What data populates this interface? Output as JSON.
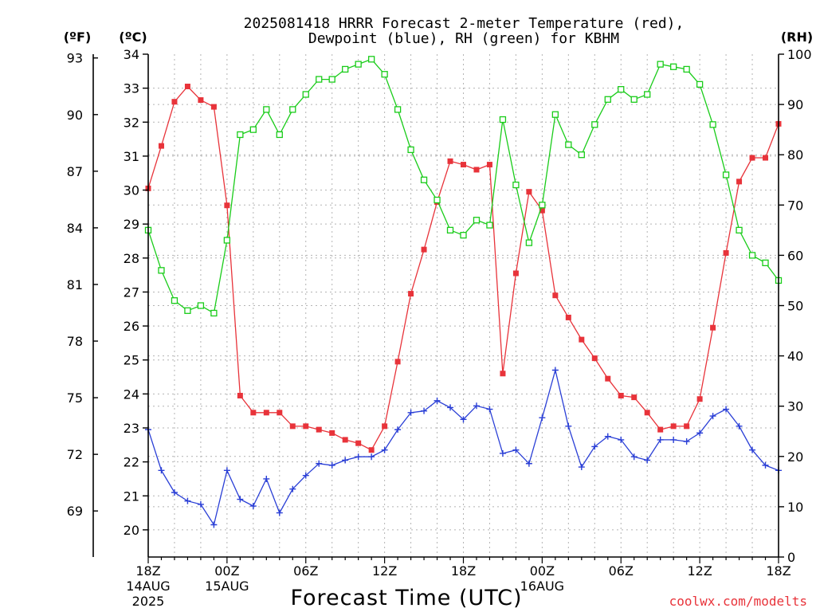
{
  "title_line1": "2025081418 HRRR Forecast 2-meter Temperature (red),",
  "title_line2": "Dewpoint (blue), RH (green) for KBHM",
  "unit_f": "(ºF)",
  "unit_c": "(ºC)",
  "unit_rh": "(RH)",
  "xlabel": "Forecast Time (UTC)",
  "credit": "coolwx.com/modelts",
  "colors": {
    "temp": "#e8333a",
    "dew": "#2a3fd6",
    "rh": "#19cc19",
    "credit": "#e8333a"
  },
  "chart_data": {
    "type": "line",
    "x_unit": "forecast hour from 2025-08-14 18Z",
    "xlim": [
      0,
      48
    ],
    "x_ticks": [
      {
        "hour": 0,
        "lines": [
          "18Z",
          "14AUG",
          "2025"
        ]
      },
      {
        "hour": 6,
        "lines": [
          "00Z",
          "15AUG"
        ]
      },
      {
        "hour": 12,
        "lines": [
          "06Z"
        ]
      },
      {
        "hour": 18,
        "lines": [
          "12Z"
        ]
      },
      {
        "hour": 24,
        "lines": [
          "18Z"
        ]
      },
      {
        "hour": 30,
        "lines": [
          "00Z",
          "16AUG"
        ]
      },
      {
        "hour": 36,
        "lines": [
          "06Z"
        ]
      },
      {
        "hour": 42,
        "lines": [
          "12Z"
        ]
      },
      {
        "hour": 48,
        "lines": [
          "18Z"
        ]
      }
    ],
    "y_left_c": {
      "ylim": [
        19.2,
        34
      ],
      "ticks": [
        20,
        21,
        22,
        23,
        24,
        25,
        26,
        27,
        28,
        29,
        30,
        31,
        32,
        33,
        34
      ]
    },
    "y_left_f": {
      "ticks": [
        69,
        72,
        75,
        78,
        81,
        84,
        87,
        90,
        93
      ]
    },
    "y_right_rh": {
      "ylim": [
        0,
        100
      ],
      "ticks": [
        0,
        10,
        20,
        30,
        40,
        50,
        60,
        70,
        80,
        90,
        100
      ]
    },
    "grid": true,
    "series": [
      {
        "key": "temp",
        "axis": "c",
        "marker": "filled-square",
        "values": [
          30.05,
          31.3,
          32.6,
          33.05,
          32.65,
          32.45,
          29.55,
          23.95,
          23.45,
          23.45,
          23.45,
          23.05,
          23.05,
          22.95,
          22.85,
          22.65,
          22.55,
          22.35,
          23.05,
          24.95,
          26.95,
          28.25,
          29.65,
          30.85,
          30.75,
          30.6,
          30.75,
          24.6,
          27.55,
          29.95,
          29.4,
          26.9,
          26.25,
          25.6,
          25.05,
          24.45,
          23.95,
          23.9,
          23.45,
          22.95,
          23.05,
          23.05,
          23.85,
          25.95,
          28.15,
          30.25,
          30.95,
          30.95,
          31.95
        ]
      },
      {
        "key": "dew",
        "axis": "c",
        "marker": "plus",
        "values": [
          22.95,
          21.75,
          21.1,
          20.85,
          20.75,
          20.15,
          21.75,
          20.9,
          20.7,
          21.5,
          20.5,
          21.2,
          21.6,
          21.95,
          21.9,
          22.05,
          22.15,
          22.15,
          22.35,
          22.95,
          23.45,
          23.5,
          23.8,
          23.6,
          23.25,
          23.65,
          23.55,
          22.25,
          22.35,
          21.95,
          23.3,
          24.7,
          23.05,
          21.85,
          22.45,
          22.75,
          22.65,
          22.15,
          22.05,
          22.65,
          22.65,
          22.6,
          22.85,
          23.35,
          23.55,
          23.05,
          22.35,
          21.9,
          21.75
        ]
      },
      {
        "key": "rh",
        "axis": "rh",
        "marker": "open-square",
        "values": [
          65,
          57,
          51,
          49,
          50,
          48.5,
          63,
          84,
          85,
          89,
          84,
          89,
          92,
          95,
          95,
          97,
          98,
          99,
          96,
          89,
          81,
          75,
          71,
          65,
          64,
          67,
          66,
          87,
          74,
          62.5,
          70,
          88,
          82,
          80,
          86,
          91,
          93,
          91,
          92,
          98,
          97.5,
          97,
          94,
          86,
          76,
          65,
          60,
          58.5,
          55
        ]
      }
    ]
  }
}
